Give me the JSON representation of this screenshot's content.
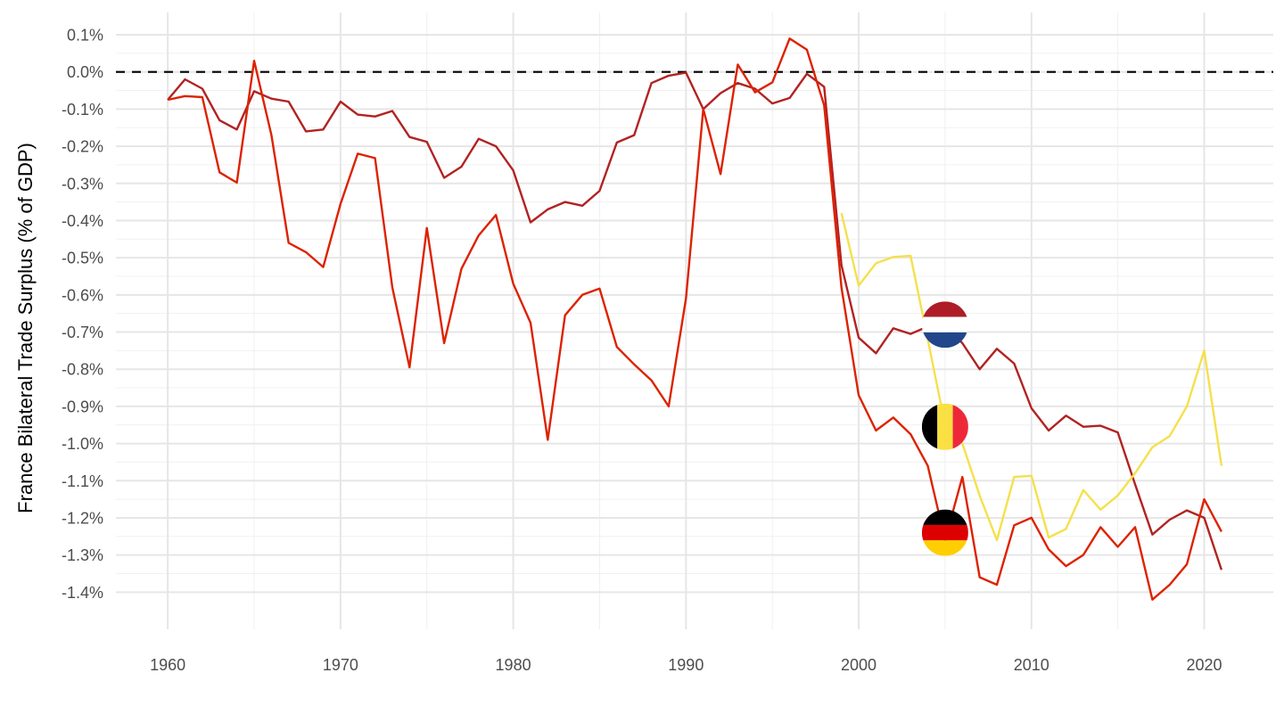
{
  "chart_data": {
    "type": "line",
    "title": "",
    "xlabel": "",
    "ylabel": "France Bilateral Trade Surplus (% of GDP)",
    "xlim": [
      1957,
      2024
    ],
    "ylim": [
      -1.5,
      0.16
    ],
    "x_ticks": [
      1960,
      1970,
      1980,
      1990,
      2000,
      2010,
      2020
    ],
    "x_tick_labels": [
      "1960",
      "1970",
      "1980",
      "1990",
      "2000",
      "2010",
      "2020"
    ],
    "y_ticks": [
      0.1,
      0.0,
      -0.1,
      -0.2,
      -0.3,
      -0.4,
      -0.5,
      -0.6,
      -0.7,
      -0.8,
      -0.9,
      -1.0,
      -1.1,
      -1.2,
      -1.3,
      -1.4
    ],
    "y_tick_labels": [
      "0.1%",
      "0.0%",
      "-0.1%",
      "-0.2%",
      "-0.3%",
      "-0.4%",
      "-0.5%",
      "-0.6%",
      "-0.7%",
      "-0.8%",
      "-0.9%",
      "-1.0%",
      "-1.1%",
      "-1.2%",
      "-1.3%",
      "-1.4%"
    ],
    "grid": true,
    "reference_line": {
      "y": 0.0,
      "style": "dashed",
      "color": "#000000"
    },
    "legend": "flag markers on lines at 2005",
    "series": [
      {
        "country": "Netherlands",
        "flag": "netherlands-flag",
        "color": "#B22222",
        "x": [
          1960,
          1961,
          1962,
          1963,
          1964,
          1965,
          1966,
          1967,
          1968,
          1969,
          1970,
          1971,
          1972,
          1973,
          1974,
          1975,
          1976,
          1977,
          1978,
          1979,
          1980,
          1981,
          1982,
          1983,
          1984,
          1985,
          1986,
          1987,
          1988,
          1989,
          1990,
          1991,
          1992,
          1993,
          1994,
          1995,
          1996,
          1997,
          1998,
          1999,
          2000,
          2001,
          2002,
          2003,
          2004,
          2005,
          2006,
          2007,
          2008,
          2009,
          2010,
          2011,
          2012,
          2013,
          2014,
          2015,
          2016,
          2017,
          2018,
          2019,
          2020,
          2021
        ],
        "y": [
          -0.075,
          -0.02,
          -0.045,
          -0.13,
          -0.155,
          -0.052,
          -0.072,
          -0.08,
          -0.16,
          -0.155,
          -0.08,
          -0.115,
          -0.12,
          -0.105,
          -0.175,
          -0.188,
          -0.285,
          -0.255,
          -0.18,
          -0.2,
          -0.265,
          -0.405,
          -0.37,
          -0.35,
          -0.36,
          -0.32,
          -0.19,
          -0.17,
          -0.03,
          -0.01,
          -0.002,
          -0.1,
          -0.057,
          -0.03,
          -0.045,
          -0.085,
          -0.07,
          -0.005,
          -0.04,
          -0.52,
          -0.715,
          -0.757,
          -0.69,
          -0.705,
          -0.685,
          -0.68,
          -0.73,
          -0.8,
          -0.745,
          -0.785,
          -0.905,
          -0.965,
          -0.925,
          -0.955,
          -0.952,
          -0.97,
          -1.11,
          -1.245,
          -1.205,
          -1.18,
          -1.2,
          -1.34
        ]
      },
      {
        "country": "Germany",
        "flag": "germany-flag",
        "color": "#DD2200",
        "x": [
          1960,
          1961,
          1962,
          1963,
          1964,
          1965,
          1966,
          1967,
          1968,
          1969,
          1970,
          1971,
          1972,
          1973,
          1974,
          1975,
          1976,
          1977,
          1978,
          1979,
          1980,
          1981,
          1982,
          1983,
          1984,
          1985,
          1986,
          1987,
          1988,
          1989,
          1990,
          1991,
          1992,
          1993,
          1994,
          1995,
          1996,
          1997,
          1998,
          1999,
          2000,
          2001,
          2002,
          2003,
          2004,
          2005,
          2006,
          2007,
          2008,
          2009,
          2010,
          2011,
          2012,
          2013,
          2014,
          2015,
          2016,
          2017,
          2018,
          2019,
          2020,
          2021
        ],
        "y": [
          -0.075,
          -0.065,
          -0.068,
          -0.27,
          -0.298,
          0.03,
          -0.17,
          -0.46,
          -0.485,
          -0.525,
          -0.355,
          -0.22,
          -0.232,
          -0.58,
          -0.795,
          -0.42,
          -0.73,
          -0.53,
          -0.44,
          -0.385,
          -0.57,
          -0.675,
          -0.99,
          -0.655,
          -0.6,
          -0.583,
          -0.74,
          -0.787,
          -0.83,
          -0.9,
          -0.61,
          -0.1,
          -0.275,
          0.02,
          -0.055,
          -0.028,
          0.09,
          0.06,
          -0.09,
          -0.58,
          -0.87,
          -0.965,
          -0.93,
          -0.975,
          -1.06,
          -1.26,
          -1.09,
          -1.36,
          -1.38,
          -1.22,
          -1.2,
          -1.285,
          -1.33,
          -1.3,
          -1.225,
          -1.278,
          -1.225,
          -1.42,
          -1.38,
          -1.325,
          -1.15,
          -1.237
        ]
      },
      {
        "country": "Belgium",
        "flag": "belgium-flag",
        "color": "#F5E04D",
        "x": [
          1999,
          2000,
          2001,
          2002,
          2003,
          2004,
          2005,
          2006,
          2007,
          2008,
          2009,
          2010,
          2011,
          2012,
          2013,
          2014,
          2015,
          2016,
          2017,
          2018,
          2019,
          2020,
          2021
        ],
        "y": [
          -0.38,
          -0.575,
          -0.515,
          -0.498,
          -0.495,
          -0.72,
          -0.95,
          -1.0,
          -1.14,
          -1.26,
          -1.09,
          -1.087,
          -1.253,
          -1.23,
          -1.125,
          -1.178,
          -1.14,
          -1.08,
          -1.01,
          -0.98,
          -0.9,
          -0.75,
          -1.06
        ]
      }
    ],
    "markers": [
      {
        "flag": "netherlands-flag",
        "x": 2005,
        "y": -0.68
      },
      {
        "flag": "belgium-flag",
        "x": 2005,
        "y": -0.955
      },
      {
        "flag": "germany-flag",
        "x": 2005,
        "y": -1.24
      }
    ]
  }
}
